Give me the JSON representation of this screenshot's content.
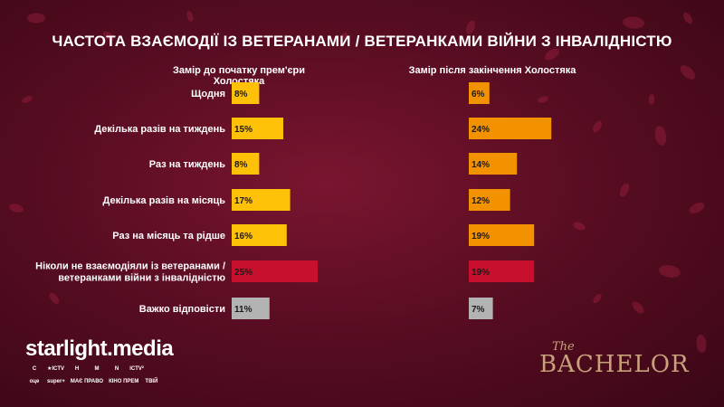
{
  "title": "ЧАСТОТА ВЗАЄМОДІЇ ІЗ ВЕТЕРАНАМИ / ВЕТЕРАНКАМИ ВІЙНИ З ІНВАЛІДНІСТЮ",
  "colors": {
    "background": "#5a0d22",
    "yellow": "#ffc107",
    "orange": "#f39200",
    "red": "#c8102e",
    "grey": "#b3b3b3"
  },
  "brand": {
    "name": "starlight.media",
    "show_logo": "The BACHELOR",
    "show_logo_the": "The",
    "show_logo_main": "BACHELOR"
  },
  "channel_logos": [
    [
      "С",
      "★ICTV",
      "Н",
      "М",
      "N",
      "ICTV²"
    ],
    [
      "оце",
      "super+",
      "МАЄ ПРАВО",
      "КІНО ПРЕМ",
      "ТВІЙ"
    ]
  ],
  "chart_data": {
    "type": "bar",
    "orientation": "horizontal",
    "title": "ЧАСТОТА ВЗАЄМОДІЇ ІЗ ВЕТЕРАНАМИ / ВЕТЕРАНКАМИ ВІЙНИ З ІНВАЛІДНІСТЮ",
    "categories": [
      "Щодня",
      "Декілька разів на тиждень",
      "Раз на тиждень",
      "Декілька разів на місяць",
      "Раз на місяць та рідше",
      "Ніколи не взаємодіяли із ветеранами / ветеранками війни з інвалідністю",
      "Важко відповісти"
    ],
    "category_lines": [
      [
        "Щодня"
      ],
      [
        "Декілька разів на тиждень"
      ],
      [
        "Раз на тиждень"
      ],
      [
        "Декілька разів на місяць"
      ],
      [
        "Раз на місяць та рідше"
      ],
      [
        "Ніколи не взаємодіяли із ветеранами /",
        "ветеранками війни з інвалідністю"
      ],
      [
        "Важко відповісти"
      ]
    ],
    "series": [
      {
        "name": "Замір до початку прем'єри Холостяка",
        "values": [
          8,
          15,
          8,
          17,
          16,
          25,
          11
        ],
        "colors": [
          "#ffc107",
          "#ffc107",
          "#ffc107",
          "#ffc107",
          "#ffc107",
          "#c8102e",
          "#b3b3b3"
        ]
      },
      {
        "name": "Замір після закінчення Холостяка",
        "values": [
          6,
          24,
          14,
          12,
          19,
          19,
          7
        ],
        "colors": [
          "#f39200",
          "#f39200",
          "#f39200",
          "#f39200",
          "#f39200",
          "#c8102e",
          "#b3b3b3"
        ]
      }
    ],
    "value_suffix": "%",
    "xlim": [
      0,
      30
    ],
    "grid": false,
    "legend": "none"
  }
}
